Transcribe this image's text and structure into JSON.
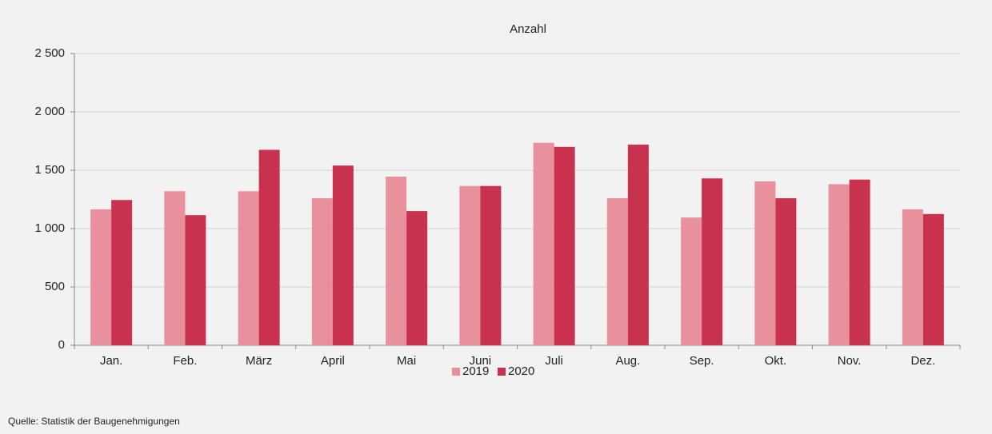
{
  "chart_data": {
    "type": "bar",
    "title": "Anzahl",
    "categories": [
      "Jan.",
      "Feb.",
      "März",
      "April",
      "Mai",
      "Juni",
      "Juli",
      "Aug.",
      "Sep.",
      "Okt.",
      "Nov.",
      "Dez."
    ],
    "series": [
      {
        "name": "2019",
        "color": "#e8909c",
        "values": [
          1165,
          1320,
          1320,
          1260,
          1445,
          1365,
          1735,
          1260,
          1095,
          1405,
          1380,
          1165
        ]
      },
      {
        "name": "2020",
        "color": "#c8324e",
        "values": [
          1245,
          1115,
          1675,
          1540,
          1150,
          1365,
          1700,
          1720,
          1430,
          1260,
          1420,
          1125
        ]
      }
    ],
    "ylim": [
      0,
      2500
    ],
    "yticks": [
      0,
      500,
      {
        "value": 1000,
        "label": "1 000"
      },
      {
        "value": 1500,
        "label": "1 500"
      },
      {
        "value": 2000,
        "label": "2 000"
      },
      {
        "value": 2500,
        "label": "2 500"
      }
    ],
    "grid": true,
    "legend": "bottom",
    "source": "Quelle: Statistik der Baugenehmigungen"
  }
}
